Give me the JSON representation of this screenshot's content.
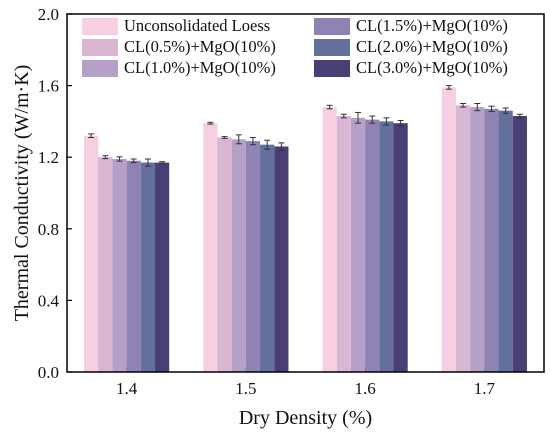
{
  "chart_data": {
    "type": "bar",
    "title": "",
    "xlabel": "Dry Density (%)",
    "ylabel": "Thermal Conductivity (W/m·K)",
    "categories": [
      "1.4",
      "1.5",
      "1.6",
      "1.7"
    ],
    "ylim": [
      0,
      2.0
    ],
    "yticks": [
      0.0,
      0.4,
      0.8,
      1.2,
      1.6,
      2.0
    ],
    "ytick_labels": [
      "0.0",
      "0.4",
      "0.8",
      "1.2",
      "1.6",
      "2.0"
    ],
    "grid": false,
    "legend_position": "top-left",
    "series": [
      {
        "name": "Unconsolidated Loess",
        "color": "#f6cfe2",
        "values": [
          1.32,
          1.39,
          1.48,
          1.59
        ],
        "errors": [
          0.01,
          0.005,
          0.01,
          0.01
        ]
      },
      {
        "name": "CL(0.5%)+MgO(10%)",
        "color": "#d9b6d1",
        "values": [
          1.2,
          1.31,
          1.43,
          1.49
        ],
        "errors": [
          0.008,
          0.005,
          0.01,
          0.01
        ]
      },
      {
        "name": "CL(1.0%)+MgO(10%)",
        "color": "#b5a0c7",
        "values": [
          1.19,
          1.3,
          1.42,
          1.48
        ],
        "errors": [
          0.012,
          0.025,
          0.03,
          0.02
        ]
      },
      {
        "name": "CL(1.5%)+MgO(10%)",
        "color": "#8f83b5",
        "values": [
          1.18,
          1.29,
          1.41,
          1.47
        ],
        "errors": [
          0.01,
          0.02,
          0.02,
          0.015
        ]
      },
      {
        "name": "CL(2.0%)+MgO(10%)",
        "color": "#64709c",
        "values": [
          1.17,
          1.27,
          1.4,
          1.46
        ],
        "errors": [
          0.02,
          0.025,
          0.02,
          0.015
        ]
      },
      {
        "name": "CL(3.0%)+MgO(10%)",
        "color": "#4a3f74",
        "values": [
          1.17,
          1.26,
          1.39,
          1.43
        ],
        "errors": [
          0.005,
          0.02,
          0.015,
          0.01
        ]
      }
    ]
  }
}
